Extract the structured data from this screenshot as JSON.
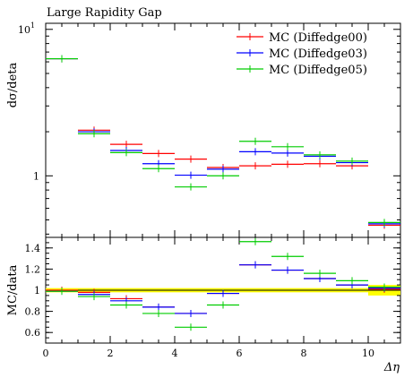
{
  "chart_data": [
    {
      "type": "line",
      "title": "Large Rapidity Gap",
      "ylabel": "dσ/deta",
      "xlabel": "Δη",
      "yscale": "log",
      "ylim": [
        0.38,
        11
      ],
      "xlim": [
        0,
        11
      ],
      "legend": {
        "placement": "top-right"
      },
      "y_tick_labels": [
        "10",
        "1"
      ],
      "series": [
        {
          "name": "MC (Diffedge00)",
          "color": "#ff0000",
          "points": [
            {
              "xlo": 0,
              "xhi": 1,
              "y": 6.3
            },
            {
              "xlo": 1,
              "xhi": 2,
              "y": 2.05
            },
            {
              "xlo": 2,
              "xhi": 3,
              "y": 1.64
            },
            {
              "xlo": 3,
              "xhi": 4,
              "y": 1.42
            },
            {
              "xlo": 4,
              "xhi": 5,
              "y": 1.3
            },
            {
              "xlo": 5,
              "xhi": 6,
              "y": 1.14
            },
            {
              "xlo": 6,
              "xhi": 7,
              "y": 1.17
            },
            {
              "xlo": 7,
              "xhi": 8,
              "y": 1.2
            },
            {
              "xlo": 8,
              "xhi": 9,
              "y": 1.21
            },
            {
              "xlo": 9,
              "xhi": 10,
              "y": 1.17
            },
            {
              "xlo": 10,
              "xhi": 11,
              "y": 0.46
            }
          ]
        },
        {
          "name": "MC (Diffedge03)",
          "color": "#0000ff",
          "points": [
            {
              "xlo": 0,
              "xhi": 1,
              "y": 6.3
            },
            {
              "xlo": 1,
              "xhi": 2,
              "y": 2.0
            },
            {
              "xlo": 2,
              "xhi": 3,
              "y": 1.49
            },
            {
              "xlo": 3,
              "xhi": 4,
              "y": 1.21
            },
            {
              "xlo": 4,
              "xhi": 5,
              "y": 1.01
            },
            {
              "xlo": 5,
              "xhi": 6,
              "y": 1.11
            },
            {
              "xlo": 6,
              "xhi": 7,
              "y": 1.46
            },
            {
              "xlo": 7,
              "xhi": 8,
              "y": 1.43
            },
            {
              "xlo": 8,
              "xhi": 9,
              "y": 1.36
            },
            {
              "xlo": 9,
              "xhi": 10,
              "y": 1.23
            },
            {
              "xlo": 10,
              "xhi": 11,
              "y": 0.47
            }
          ]
        },
        {
          "name": "MC (Diffedge05)",
          "color": "#00cc00",
          "points": [
            {
              "xlo": 0,
              "xhi": 1,
              "y": 6.3
            },
            {
              "xlo": 1,
              "xhi": 2,
              "y": 1.94
            },
            {
              "xlo": 2,
              "xhi": 3,
              "y": 1.44
            },
            {
              "xlo": 3,
              "xhi": 4,
              "y": 1.12
            },
            {
              "xlo": 4,
              "xhi": 5,
              "y": 0.84
            },
            {
              "xlo": 5,
              "xhi": 6,
              "y": 1.0
            },
            {
              "xlo": 6,
              "xhi": 7,
              "y": 1.72
            },
            {
              "xlo": 7,
              "xhi": 8,
              "y": 1.58
            },
            {
              "xlo": 8,
              "xhi": 9,
              "y": 1.39
            },
            {
              "xlo": 9,
              "xhi": 10,
              "y": 1.26
            },
            {
              "xlo": 10,
              "xhi": 11,
              "y": 0.48
            }
          ]
        }
      ]
    },
    {
      "type": "line",
      "ylabel": "MC/data",
      "xlabel": "Δη",
      "ylim": [
        0.5,
        1.5
      ],
      "xlim": [
        0,
        11
      ],
      "x_ticks": [
        0,
        2,
        4,
        6,
        8,
        10
      ],
      "y_ticks": [
        0.6,
        0.8,
        1,
        1.2,
        1.4
      ],
      "band": {
        "color": "#ffff00",
        "segments": [
          {
            "xlo": 0,
            "xhi": 10,
            "lo": 0.98,
            "hi": 1.02
          },
          {
            "xlo": 10,
            "xhi": 11,
            "lo": 0.95,
            "hi": 1.05
          }
        ]
      },
      "series": [
        {
          "name": "MC (Diffedge00)",
          "color": "#ff0000",
          "points": [
            {
              "xlo": 0,
              "xhi": 1,
              "y": 1.0
            },
            {
              "xlo": 1,
              "xhi": 2,
              "y": 0.98
            },
            {
              "xlo": 2,
              "xhi": 3,
              "y": 0.92
            },
            {
              "xlo": 3,
              "xhi": 4,
              "y": 0.84
            },
            {
              "xlo": 4,
              "xhi": 5,
              "y": 0.78
            },
            {
              "xlo": 5,
              "xhi": 6,
              "y": 0.97
            },
            {
              "xlo": 6,
              "xhi": 7,
              "y": 1.24
            },
            {
              "xlo": 7,
              "xhi": 8,
              "y": 1.19
            },
            {
              "xlo": 8,
              "xhi": 9,
              "y": 1.11
            },
            {
              "xlo": 9,
              "xhi": 10,
              "y": 1.05
            },
            {
              "xlo": 10,
              "xhi": 11,
              "y": 1.01
            }
          ]
        },
        {
          "name": "MC (Diffedge03)",
          "color": "#0000ff",
          "points": [
            {
              "xlo": 0,
              "xhi": 1,
              "y": 0.99
            },
            {
              "xlo": 1,
              "xhi": 2,
              "y": 0.96
            },
            {
              "xlo": 2,
              "xhi": 3,
              "y": 0.9
            },
            {
              "xlo": 3,
              "xhi": 4,
              "y": 0.84
            },
            {
              "xlo": 4,
              "xhi": 5,
              "y": 0.78
            },
            {
              "xlo": 5,
              "xhi": 6,
              "y": 0.97
            },
            {
              "xlo": 6,
              "xhi": 7,
              "y": 1.24
            },
            {
              "xlo": 7,
              "xhi": 8,
              "y": 1.19
            },
            {
              "xlo": 8,
              "xhi": 9,
              "y": 1.11
            },
            {
              "xlo": 9,
              "xhi": 10,
              "y": 1.05
            },
            {
              "xlo": 10,
              "xhi": 11,
              "y": 1.02
            }
          ]
        },
        {
          "name": "MC (Diffedge05)",
          "color": "#00cc00",
          "points": [
            {
              "xlo": 0,
              "xhi": 1,
              "y": 0.99
            },
            {
              "xlo": 1,
              "xhi": 2,
              "y": 0.94
            },
            {
              "xlo": 2,
              "xhi": 3,
              "y": 0.86
            },
            {
              "xlo": 3,
              "xhi": 4,
              "y": 0.78
            },
            {
              "xlo": 4,
              "xhi": 5,
              "y": 0.65
            },
            {
              "xlo": 5,
              "xhi": 6,
              "y": 0.86
            },
            {
              "xlo": 6,
              "xhi": 7,
              "y": 1.46
            },
            {
              "xlo": 7,
              "xhi": 8,
              "y": 1.32
            },
            {
              "xlo": 8,
              "xhi": 9,
              "y": 1.16
            },
            {
              "xlo": 9,
              "xhi": 10,
              "y": 1.09
            },
            {
              "xlo": 10,
              "xhi": 11,
              "y": 1.03
            }
          ]
        }
      ]
    }
  ]
}
